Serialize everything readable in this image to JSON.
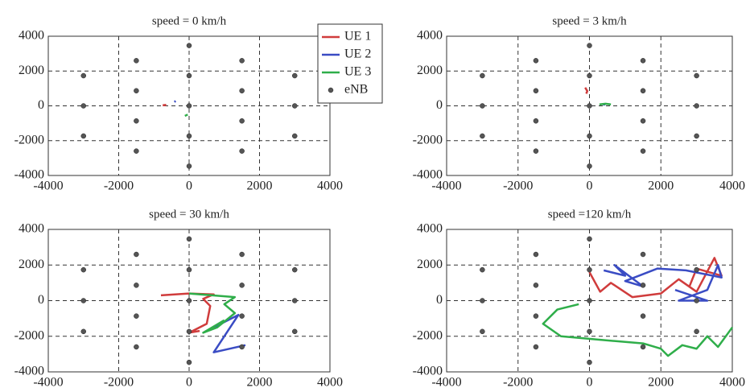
{
  "chart_data": [
    {
      "type": "line",
      "title": "speed = 0 km/h",
      "xlim": [
        -4000,
        4000
      ],
      "ylim": [
        -4000,
        4000
      ],
      "xticks": [
        -4000,
        -2000,
        0,
        2000,
        4000
      ],
      "yticks": [
        -4000,
        -2000,
        0,
        2000,
        4000
      ],
      "grid": true,
      "legend": "upper right",
      "series": [
        {
          "name": "UE 1",
          "color": "#d03c3c",
          "style": "line",
          "x": [
            -750,
            -650
          ],
          "values": [
            30,
            60
          ]
        },
        {
          "name": "UE 2",
          "color": "#3a4cc4",
          "style": "line",
          "x": [
            -420,
            -380
          ],
          "values": [
            230,
            270
          ]
        },
        {
          "name": "UE 3",
          "color": "#2fae4a",
          "style": "line",
          "x": [
            -120,
            -40
          ],
          "values": [
            -580,
            -500
          ]
        },
        {
          "name": "eNB",
          "color": "#555555",
          "style": "points",
          "x": [
            -3000,
            -3000,
            -3000,
            -1500,
            -1500,
            -1500,
            -1500,
            0,
            0,
            0,
            0,
            0,
            1500,
            1500,
            1500,
            1500,
            3000,
            3000,
            3000
          ],
          "values": [
            1732,
            0,
            -1732,
            2598,
            866,
            -866,
            -2598,
            3464,
            1732,
            0,
            -1732,
            -3464,
            2598,
            866,
            -866,
            -2598,
            1732,
            0,
            -1732
          ]
        }
      ]
    },
    {
      "type": "line",
      "title": "speed = 3 km/h",
      "xlim": [
        -4000,
        4000
      ],
      "ylim": [
        -4000,
        4000
      ],
      "xticks": [
        -4000,
        -2000,
        0,
        2000,
        4000
      ],
      "yticks": [
        -4000,
        -2000,
        0,
        2000,
        4000
      ],
      "grid": true,
      "series": [
        {
          "name": "UE 1",
          "color": "#d03c3c",
          "style": "line",
          "x": [
            -120,
            -60,
            -90
          ],
          "values": [
            1050,
            850,
            700
          ]
        },
        {
          "name": "UE 2",
          "color": "#3a4cc4",
          "style": "line",
          "x": [
            380,
            440
          ],
          "values": [
            60,
            90
          ]
        },
        {
          "name": "UE 3",
          "color": "#2fae4a",
          "style": "line",
          "x": [
            280,
            450,
            600
          ],
          "values": [
            80,
            120,
            80
          ]
        },
        {
          "name": "eNB",
          "color": "#555555",
          "style": "points",
          "x": [
            -3000,
            -3000,
            -3000,
            -1500,
            -1500,
            -1500,
            -1500,
            0,
            0,
            0,
            0,
            0,
            1500,
            1500,
            1500,
            1500,
            3000,
            3000,
            3000
          ],
          "values": [
            1732,
            0,
            -1732,
            2598,
            866,
            -866,
            -2598,
            3464,
            1732,
            0,
            -1732,
            -3464,
            2598,
            866,
            -866,
            -2598,
            1732,
            0,
            -1732
          ]
        }
      ]
    },
    {
      "type": "line",
      "title": "speed = 30 km/h",
      "xlim": [
        -4000,
        4000
      ],
      "ylim": [
        -4000,
        4000
      ],
      "xticks": [
        -4000,
        -2000,
        0,
        2000,
        4000
      ],
      "yticks": [
        -4000,
        -2000,
        0,
        2000,
        4000
      ],
      "grid": true,
      "series": [
        {
          "name": "UE 1",
          "color": "#d03c3c",
          "style": "line",
          "x": [
            -800,
            0,
            700,
            400,
            600,
            500,
            0,
            300
          ],
          "values": [
            300,
            400,
            350,
            100,
            -300,
            -1300,
            -1800,
            -1700
          ]
        },
        {
          "name": "UE 2",
          "color": "#3a4cc4",
          "style": "line",
          "x": [
            500,
            1400,
            700,
            1600
          ],
          "values": [
            -1700,
            -800,
            -2900,
            -2500
          ]
        },
        {
          "name": "UE 3",
          "color": "#2fae4a",
          "style": "line",
          "x": [
            0,
            1300,
            1000,
            1300,
            800,
            400,
            1000
          ],
          "values": [
            400,
            200,
            -200,
            -700,
            -1500,
            -1800,
            -1100
          ]
        },
        {
          "name": "eNB",
          "color": "#555555",
          "style": "points",
          "x": [
            -3000,
            -3000,
            -3000,
            -1500,
            -1500,
            -1500,
            -1500,
            0,
            0,
            0,
            0,
            0,
            1500,
            1500,
            1500,
            1500,
            3000,
            3000,
            3000
          ],
          "values": [
            1732,
            0,
            -1732,
            2598,
            866,
            -866,
            -2598,
            3464,
            1732,
            0,
            -1732,
            -3464,
            2598,
            866,
            -866,
            -2598,
            1732,
            0,
            -1732
          ]
        }
      ]
    },
    {
      "type": "line",
      "title": "speed =120 km/h",
      "xlim": [
        -4000,
        4000
      ],
      "ylim": [
        -4000,
        4000
      ],
      "xticks": [
        -4000,
        -2000,
        0,
        2000,
        4000
      ],
      "yticks": [
        -4000,
        -2000,
        0,
        2000,
        4000
      ],
      "grid": true,
      "series": [
        {
          "name": "UE 1",
          "color": "#d03c3c",
          "style": "line",
          "x": [
            0,
            300,
            600,
            1200,
            2000,
            2500,
            3000,
            3500,
            3700,
            3000,
            2800
          ],
          "values": [
            1600,
            500,
            1000,
            200,
            400,
            1200,
            500,
            2400,
            1400,
            1800,
            800
          ]
        },
        {
          "name": "UE 2",
          "color": "#3a4cc4",
          "style": "line",
          "x": [
            400,
            1000,
            700,
            1500,
            1000,
            1900,
            2700,
            3700,
            3600,
            3300,
            2500,
            3300,
            2400
          ],
          "values": [
            1700,
            1400,
            2000,
            800,
            1100,
            1800,
            1700,
            1300,
            2000,
            600,
            0,
            0,
            600
          ]
        },
        {
          "name": "UE 3",
          "color": "#2fae4a",
          "style": "line",
          "x": [
            -300,
            -900,
            -1300,
            -800,
            300,
            1500,
            2000,
            2200,
            2600,
            3000,
            3300,
            3600,
            4000
          ],
          "values": [
            -200,
            -500,
            -1300,
            -2000,
            -2200,
            -2400,
            -2700,
            -3100,
            -2500,
            -2700,
            -2000,
            -2600,
            -1500
          ]
        },
        {
          "name": "eNB",
          "color": "#555555",
          "style": "points",
          "x": [
            -3000,
            -3000,
            -3000,
            -1500,
            -1500,
            -1500,
            -1500,
            0,
            0,
            0,
            0,
            0,
            1500,
            1500,
            1500,
            1500,
            3000,
            3000,
            3000
          ],
          "values": [
            1732,
            0,
            -1732,
            2598,
            866,
            -866,
            -2598,
            3464,
            1732,
            0,
            -1732,
            -3464,
            2598,
            866,
            -866,
            -2598,
            1732,
            0,
            -1732
          ]
        }
      ]
    }
  ]
}
